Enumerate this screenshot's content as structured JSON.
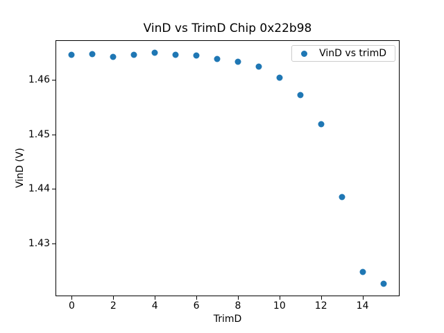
{
  "chart_data": {
    "type": "scatter",
    "title": "VinD vs TrimD Chip 0x22b98",
    "xlabel": "TrimD",
    "ylabel": "VinD (V)",
    "legend": {
      "label": "VinD vs trimD",
      "position": "upper right"
    },
    "marker_color": "#1f77b4",
    "grid": false,
    "x": [
      0,
      1,
      2,
      3,
      4,
      5,
      6,
      7,
      8,
      9,
      10,
      11,
      12,
      13,
      14,
      15
    ],
    "y": [
      1.46453,
      1.46466,
      1.46416,
      1.46462,
      1.46495,
      1.46453,
      1.46448,
      1.46378,
      1.46327,
      1.46239,
      1.46042,
      1.45718,
      1.45189,
      1.43859,
      1.42486,
      1.42263
    ],
    "xlim": [
      -0.75,
      15.75
    ],
    "ylim": [
      1.4205,
      1.4671
    ],
    "xticks": [
      0,
      2,
      4,
      6,
      8,
      10,
      12,
      14
    ],
    "yticks": [
      1.43,
      1.44,
      1.45,
      1.46
    ],
    "ytick_decimals": 2
  }
}
